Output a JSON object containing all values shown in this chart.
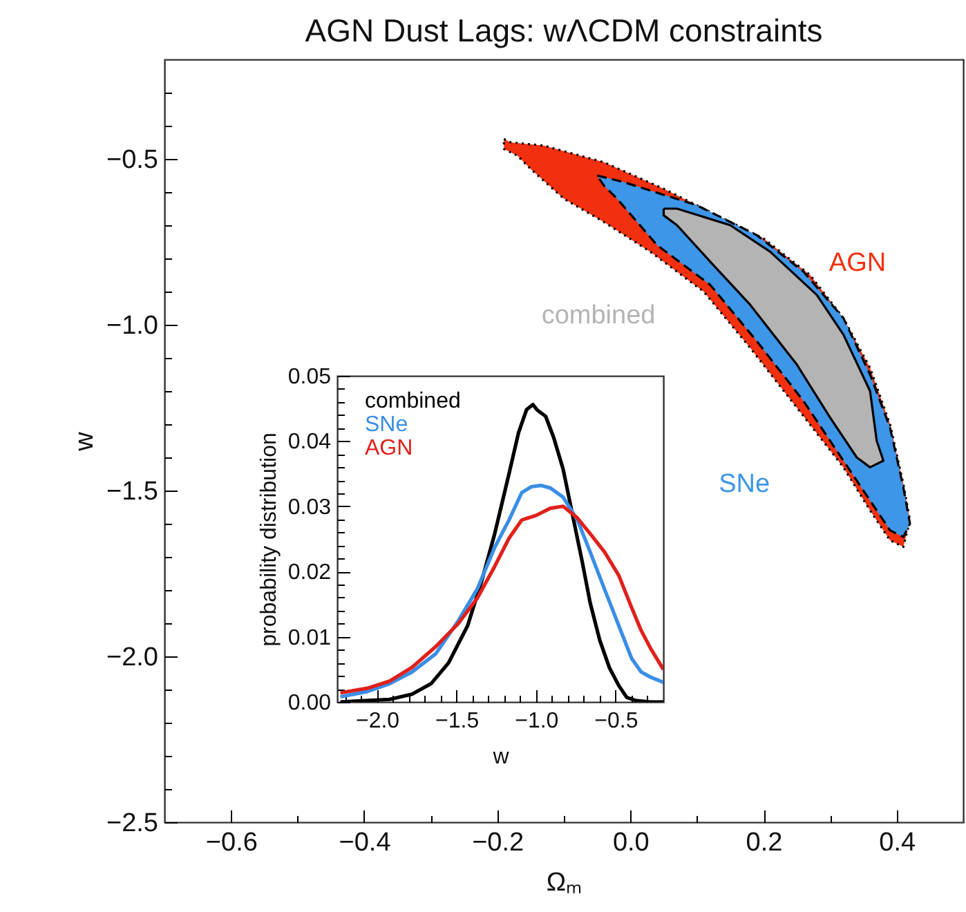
{
  "chart_data": [
    {
      "type": "area",
      "title": "AGN Dust Lags: wΛCDM constraints",
      "xlabel": "Ωₘ",
      "ylabel": "w",
      "xlim": [
        -0.7,
        0.5
      ],
      "ylim": [
        -2.5,
        -0.2
      ],
      "xticks": [
        {
          "value": -0.6,
          "label": "−0.6"
        },
        {
          "value": -0.5,
          "label": null
        },
        {
          "value": -0.4,
          "label": "−0.4"
        },
        {
          "value": -0.3,
          "label": null
        },
        {
          "value": -0.2,
          "label": "−0.2"
        },
        {
          "value": -0.1,
          "label": null
        },
        {
          "value": 0,
          "label": "0.0"
        },
        {
          "value": 0.1,
          "label": null
        },
        {
          "value": 0.2,
          "label": "0.2"
        },
        {
          "value": 0.3,
          "label": null
        },
        {
          "value": 0.4,
          "label": "0.4"
        }
      ],
      "yticks": [
        {
          "value": -2.5,
          "label": "−2.5"
        },
        {
          "value": -2.4,
          "label": null
        },
        {
          "value": -2.3,
          "label": null
        },
        {
          "value": -2.2,
          "label": null
        },
        {
          "value": -2.1,
          "label": null
        },
        {
          "value": -2.0,
          "label": "−2.0"
        },
        {
          "value": -1.9,
          "label": null
        },
        {
          "value": -1.8,
          "label": null
        },
        {
          "value": -1.7,
          "label": null
        },
        {
          "value": -1.6,
          "label": null
        },
        {
          "value": -1.5,
          "label": "−1.5"
        },
        {
          "value": -1.4,
          "label": null
        },
        {
          "value": -1.3,
          "label": null
        },
        {
          "value": -1.2,
          "label": null
        },
        {
          "value": -1.1,
          "label": null
        },
        {
          "value": -1.0,
          "label": "−1.0"
        },
        {
          "value": -0.9,
          "label": null
        },
        {
          "value": -0.8,
          "label": null
        },
        {
          "value": -0.7,
          "label": null
        },
        {
          "value": -0.6,
          "label": null
        },
        {
          "value": -0.5,
          "label": "−0.5"
        },
        {
          "value": -0.4,
          "label": null
        },
        {
          "value": -0.3,
          "label": null
        }
      ],
      "series": [
        {
          "name": "AGN",
          "color": "#f2300f",
          "line_style": "dotted",
          "x": [
            -0.19,
            -0.18,
            -0.13,
            -0.04,
            0.05,
            0.13,
            0.2,
            0.27,
            0.32,
            0.36,
            0.39,
            0.41,
            0.42,
            0.41,
            0.39,
            0.36,
            0.32,
            0.25,
            0.18,
            0.11,
            0.03,
            -0.04,
            -0.1,
            -0.15,
            -0.17,
            -0.19
          ],
          "values": [
            -0.44,
            -0.45,
            -0.46,
            -0.51,
            -0.59,
            -0.67,
            -0.74,
            -0.85,
            -0.98,
            -1.13,
            -1.3,
            -1.48,
            -1.59,
            -1.67,
            -1.65,
            -1.56,
            -1.43,
            -1.25,
            -1.07,
            -0.9,
            -0.78,
            -0.69,
            -0.62,
            -0.53,
            -0.49,
            -0.47
          ]
        },
        {
          "name": "SNe",
          "color": "#3d96e8",
          "line_style": "dashed",
          "x": [
            -0.05,
            -0.01,
            0.1,
            0.19,
            0.26,
            0.32,
            0.36,
            0.39,
            0.41,
            0.42,
            0.41,
            0.39,
            0.36,
            0.32,
            0.26,
            0.19,
            0.12,
            0.04,
            -0.02,
            -0.04
          ],
          "values": [
            -0.55,
            -0.57,
            -0.64,
            -0.73,
            -0.84,
            -0.98,
            -1.15,
            -1.31,
            -1.49,
            -1.6,
            -1.64,
            -1.62,
            -1.53,
            -1.41,
            -1.23,
            -1.05,
            -0.88,
            -0.76,
            -0.62,
            -0.58
          ]
        },
        {
          "name": "combined",
          "color": "#b4b4b4",
          "line_style": "solid",
          "x": [
            0.05,
            0.07,
            0.15,
            0.21,
            0.28,
            0.32,
            0.36,
            0.37,
            0.38,
            0.36,
            0.34,
            0.3,
            0.25,
            0.18,
            0.12,
            0.07,
            0.05
          ],
          "values": [
            -0.65,
            -0.65,
            -0.7,
            -0.78,
            -0.91,
            -1.03,
            -1.2,
            -1.35,
            -1.41,
            -1.43,
            -1.4,
            -1.28,
            -1.12,
            -0.94,
            -0.81,
            -0.7,
            -0.67
          ]
        }
      ]
    },
    {
      "type": "line",
      "xlabel": "w",
      "ylabel": "probability distribution",
      "xlim": [
        -2.25,
        -0.2
      ],
      "ylim": [
        0,
        0.05
      ],
      "legend": "top left",
      "xticks": [
        {
          "value": -2.2,
          "label": null
        },
        {
          "value": -2.1,
          "label": null
        },
        {
          "value": -2.0,
          "label": "−2.0"
        },
        {
          "value": -1.9,
          "label": null
        },
        {
          "value": -1.8,
          "label": null
        },
        {
          "value": -1.7,
          "label": null
        },
        {
          "value": -1.6,
          "label": null
        },
        {
          "value": -1.5,
          "label": "−1.5"
        },
        {
          "value": -1.4,
          "label": null
        },
        {
          "value": -1.3,
          "label": null
        },
        {
          "value": -1.2,
          "label": null
        },
        {
          "value": -1.1,
          "label": null
        },
        {
          "value": -1.0,
          "label": "−1.0"
        },
        {
          "value": -0.9,
          "label": null
        },
        {
          "value": -0.8,
          "label": null
        },
        {
          "value": -0.7,
          "label": null
        },
        {
          "value": -0.6,
          "label": null
        },
        {
          "value": -0.5,
          "label": "−0.5"
        },
        {
          "value": -0.4,
          "label": null
        },
        {
          "value": -0.3,
          "label": null
        }
      ],
      "yticks": [
        {
          "value": 0,
          "label": "0.00"
        },
        {
          "value": 0.002,
          "label": null
        },
        {
          "value": 0.004,
          "label": null
        },
        {
          "value": 0.006,
          "label": null
        },
        {
          "value": 0.008,
          "label": null
        },
        {
          "value": 0.01,
          "label": "0.01"
        },
        {
          "value": 0.012,
          "label": null
        },
        {
          "value": 0.014,
          "label": null
        },
        {
          "value": 0.016,
          "label": null
        },
        {
          "value": 0.018,
          "label": null
        },
        {
          "value": 0.02,
          "label": "0.02"
        },
        {
          "value": 0.022,
          "label": null
        },
        {
          "value": 0.024,
          "label": null
        },
        {
          "value": 0.026,
          "label": null
        },
        {
          "value": 0.028,
          "label": null
        },
        {
          "value": 0.03,
          "label": "0.03"
        },
        {
          "value": 0.032,
          "label": null
        },
        {
          "value": 0.034,
          "label": null
        },
        {
          "value": 0.036,
          "label": null
        },
        {
          "value": 0.038,
          "label": null
        },
        {
          "value": 0.04,
          "label": "0.04"
        },
        {
          "value": 0.042,
          "label": null
        },
        {
          "value": 0.044,
          "label": null
        },
        {
          "value": 0.046,
          "label": null
        },
        {
          "value": 0.048,
          "label": null
        },
        {
          "value": 0.05,
          "label": "0.05"
        }
      ],
      "series": [
        {
          "name": "combined",
          "color": "#000000",
          "x": [
            -2.23,
            -1.92,
            -1.78,
            -1.66,
            -1.55,
            -1.43,
            -1.34,
            -1.26,
            -1.17,
            -1.11,
            -1.06,
            -1.02,
            -0.99,
            -0.94,
            -0.89,
            -0.83,
            -0.77,
            -0.71,
            -0.66,
            -0.6,
            -0.54,
            -0.48,
            -0.43,
            -0.37,
            -0.28,
            -0.2
          ],
          "values": [
            0,
            0.0004,
            0.0012,
            0.0028,
            0.006,
            0.0117,
            0.0187,
            0.0258,
            0.035,
            0.0413,
            0.0448,
            0.0456,
            0.0447,
            0.0438,
            0.0406,
            0.0357,
            0.0286,
            0.0215,
            0.0152,
            0.0095,
            0.0053,
            0.0025,
            0.0007,
            0.0002,
            0,
            0
          ]
        },
        {
          "name": "SNe",
          "color": "#3a8ee6",
          "x": [
            -2.23,
            -2.06,
            -1.92,
            -1.78,
            -1.63,
            -1.49,
            -1.37,
            -1.26,
            -1.17,
            -1.09,
            -1.03,
            -0.97,
            -0.91,
            -0.83,
            -0.74,
            -0.66,
            -0.57,
            -0.48,
            -0.4,
            -0.34,
            -0.28,
            -0.2
          ],
          "values": [
            0.0008,
            0.0016,
            0.0028,
            0.0046,
            0.0074,
            0.0124,
            0.0173,
            0.0237,
            0.0279,
            0.0321,
            0.033,
            0.0332,
            0.0328,
            0.0314,
            0.0279,
            0.023,
            0.0173,
            0.0117,
            0.0067,
            0.0046,
            0.0038,
            0.003
          ]
        },
        {
          "name": "AGN",
          "color": "#e0201b",
          "x": [
            -2.23,
            -2.06,
            -1.92,
            -1.78,
            -1.63,
            -1.49,
            -1.37,
            -1.26,
            -1.17,
            -1.09,
            -1.0,
            -0.91,
            -0.83,
            -0.74,
            -0.66,
            -0.57,
            -0.48,
            -0.4,
            -0.34,
            -0.28,
            -0.2
          ],
          "values": [
            0.0014,
            0.0021,
            0.0032,
            0.0053,
            0.0085,
            0.012,
            0.0159,
            0.0208,
            0.0251,
            0.0279,
            0.0286,
            0.0297,
            0.03,
            0.0282,
            0.0258,
            0.023,
            0.0194,
            0.0145,
            0.011,
            0.0082,
            0.005
          ]
        }
      ]
    }
  ]
}
